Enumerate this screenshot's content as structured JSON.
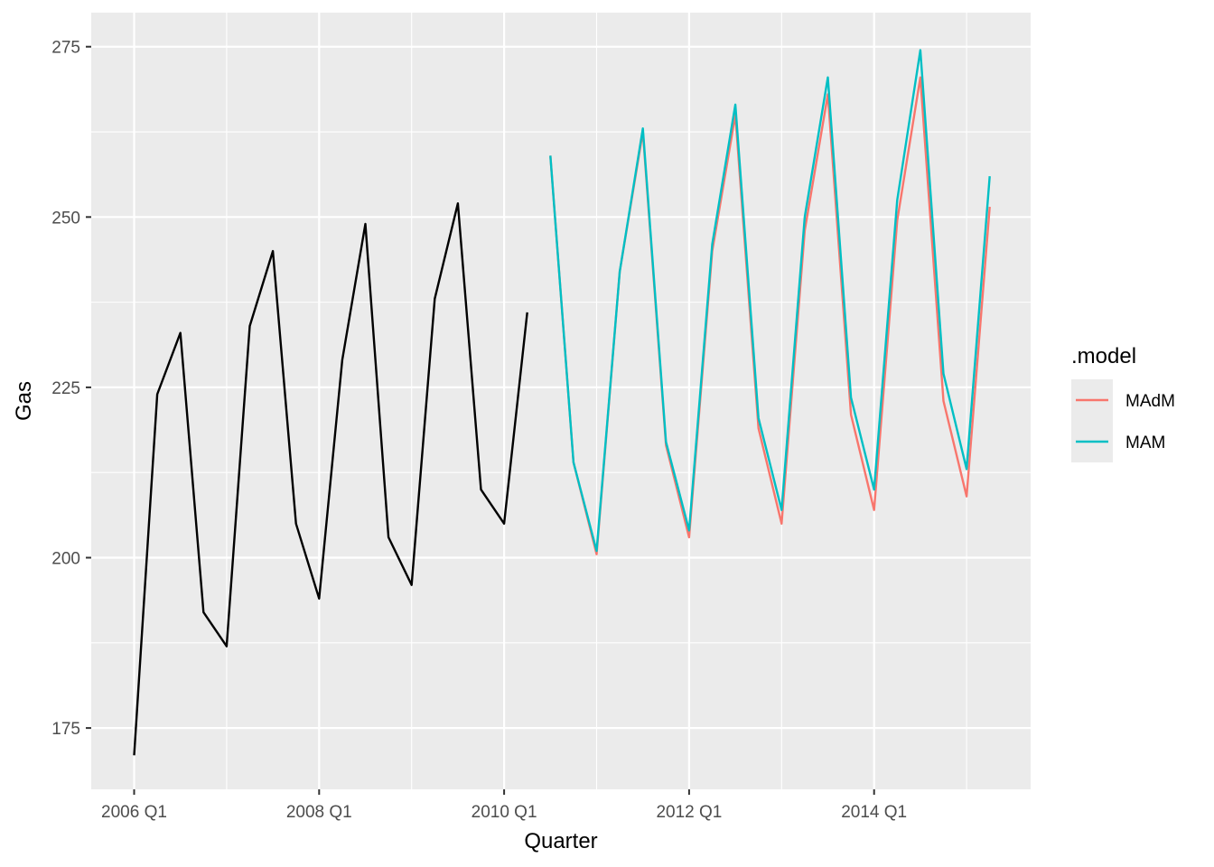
{
  "chart_data": {
    "type": "line",
    "xlabel": "Quarter",
    "ylabel": "Gas",
    "x_tick_labels": [
      "2006 Q1",
      "2008 Q1",
      "2010 Q1",
      "2012 Q1",
      "2014 Q1"
    ],
    "y_ticks": [
      175,
      200,
      225,
      250,
      275
    ],
    "ylim": [
      166,
      280
    ],
    "grid": true,
    "legend": {
      "title": ".model",
      "placement": "right",
      "entries": [
        "MAdM",
        "MAM"
      ]
    },
    "history": {
      "color": "#000000",
      "x": [
        "2006 Q1",
        "2006 Q2",
        "2006 Q3",
        "2006 Q4",
        "2007 Q1",
        "2007 Q2",
        "2007 Q3",
        "2007 Q4",
        "2008 Q1",
        "2008 Q2",
        "2008 Q3",
        "2008 Q4",
        "2009 Q1",
        "2009 Q2",
        "2009 Q3",
        "2009 Q4",
        "2010 Q1",
        "2010 Q2"
      ],
      "values": [
        171,
        224,
        233,
        192,
        187,
        234,
        245,
        205,
        194,
        229,
        249,
        203,
        196,
        238,
        252,
        210,
        205,
        236
      ]
    },
    "x": [
      "2010 Q3",
      "2010 Q4",
      "2011 Q1",
      "2011 Q2",
      "2011 Q3",
      "2011 Q4",
      "2012 Q1",
      "2012 Q2",
      "2012 Q3",
      "2012 Q4",
      "2013 Q1",
      "2013 Q2",
      "2013 Q3",
      "2013 Q4",
      "2014 Q1",
      "2014 Q2",
      "2014 Q3",
      "2014 Q4",
      "2015 Q1",
      "2015 Q2"
    ],
    "series": [
      {
        "name": "MAdM",
        "color": "#F8766D",
        "values": [
          259,
          214,
          200.5,
          242,
          262.5,
          216.5,
          203,
          245,
          265,
          219,
          205,
          248,
          268,
          221,
          207,
          249.5,
          270.5,
          223,
          209,
          251.5
        ]
      },
      {
        "name": "MAM",
        "color": "#00BFC4",
        "values": [
          259,
          214,
          201,
          242,
          263,
          217,
          204,
          246,
          266.5,
          220.5,
          207,
          250,
          270.5,
          223.5,
          210,
          252.5,
          274.5,
          227,
          213,
          256
        ]
      }
    ]
  }
}
